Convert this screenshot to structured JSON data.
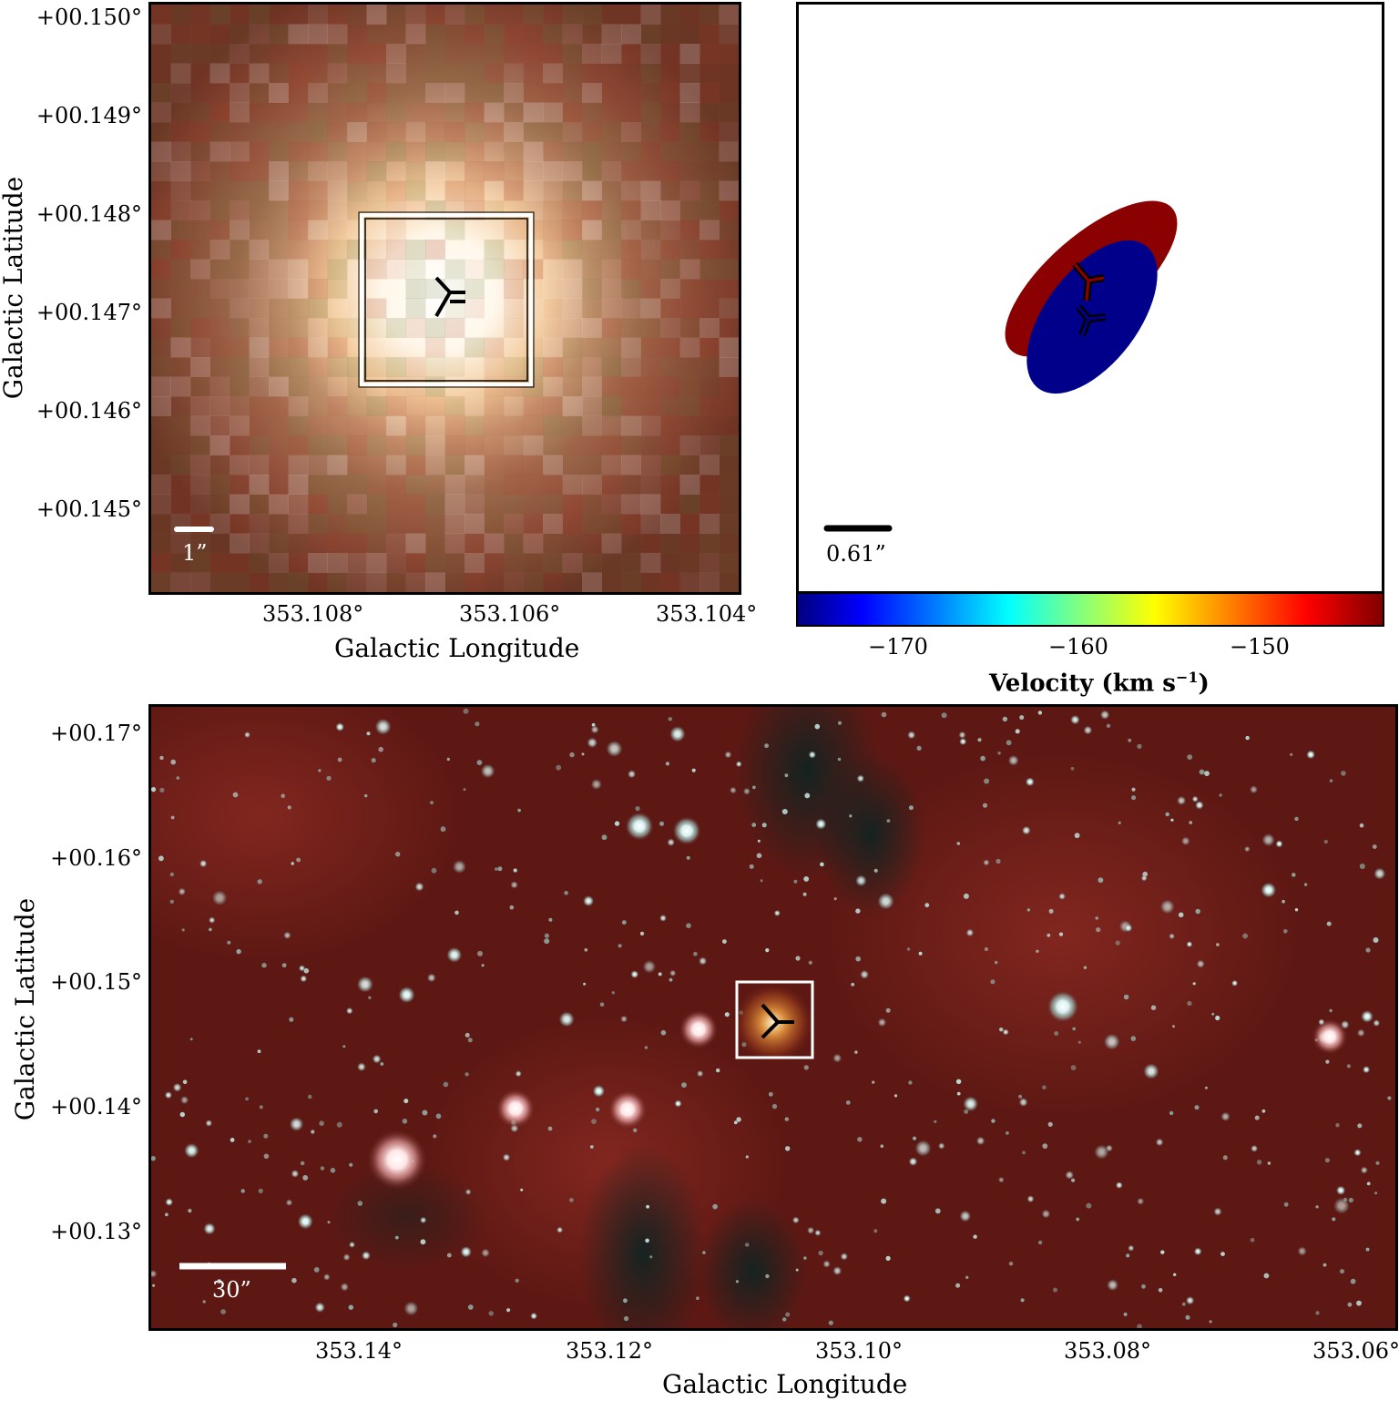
{
  "top_left_panel": {
    "y_ticks": [
      "+00.150°",
      "+00.149°",
      "+00.148°",
      "+00.147°",
      "+00.146°",
      "+00.145°"
    ],
    "x_ticks": [
      "353.108°",
      "353.106°",
      "353.104°"
    ],
    "xlabel": "Galactic Longitude",
    "ylabel": "Galactic Latitude",
    "scale_bar_label": "1”"
  },
  "top_right_panel": {
    "scale_bar_label": "0.61”",
    "colorbar": {
      "ticks": [
        "−170",
        "−160",
        "−150"
      ],
      "label": "Velocity (km s",
      "label_sup": "−1",
      "label_tail": ")",
      "colormap": "jet"
    },
    "lobes": [
      {
        "name": "red-lobe",
        "color": "#8b0000"
      },
      {
        "name": "blue-lobe",
        "color": "#00008b"
      }
    ]
  },
  "bottom_panel": {
    "y_ticks": [
      "+00.17°",
      "+00.16°",
      "+00.15°",
      "+00.14°",
      "+00.13°"
    ],
    "x_ticks": [
      "353.14°",
      "353.12°",
      "353.10°",
      "353.08°",
      "353.06°"
    ],
    "xlabel": "Galactic Longitude",
    "ylabel": "Galactic Latitude",
    "scale_bar_label": "30”"
  }
}
